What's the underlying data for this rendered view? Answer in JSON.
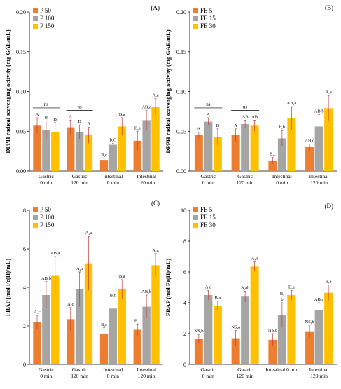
{
  "chart_data": [
    {
      "panel": "(A)",
      "type": "bar",
      "ylabel": "DPPH radical scavenging activity (mg GAE/mL)",
      "ylim": [
        0,
        0.2
      ],
      "yticks": [
        "0.00",
        "0.05",
        "0.10",
        "0.15",
        "0.20"
      ],
      "grid": false,
      "legend_position": "top-left",
      "categories": [
        [
          "Gastric",
          "0 min"
        ],
        [
          "Gastric",
          "120 min"
        ],
        [
          "Intestinal",
          "0 min"
        ],
        [
          "Intestinal",
          "120 min"
        ]
      ],
      "series": [
        {
          "name": "P 50",
          "color": "#ED7D31",
          "values": [
            0.057,
            0.055,
            0.014,
            0.038
          ],
          "errors": [
            0.01,
            0.009,
            0.002,
            0.012
          ],
          "labels": [
            "A",
            "A",
            "B,c",
            "B,a"
          ]
        },
        {
          "name": "P 100",
          "color": "#A5A5A5",
          "values": [
            0.052,
            0.049,
            0.033,
            0.064
          ],
          "errors": [
            0.011,
            0.009,
            0.002,
            0.012
          ],
          "labels": [
            "B",
            "B",
            "b,C",
            "AB,a"
          ]
        },
        {
          "name": "P 150",
          "color": "#FFC000",
          "values": [
            0.049,
            0.045,
            0.056,
            0.081
          ],
          "errors": [
            0.012,
            0.01,
            0.011,
            0.01
          ],
          "labels": [
            "B",
            "B",
            "B,a",
            "A,a"
          ]
        }
      ],
      "annotations": [
        {
          "text": "ns",
          "category": 0
        },
        {
          "text": "ns",
          "category": 1
        }
      ]
    },
    {
      "panel": "(B)",
      "type": "bar",
      "ylabel": "DPPH radical scavenging activity (mg GAE/mL)",
      "ylim": [
        0,
        0.2
      ],
      "yticks": [
        "0.00",
        "0.05",
        "0.10",
        "0.15",
        "0.20"
      ],
      "grid": false,
      "legend_position": "top-left",
      "categories": [
        [
          "Gastric",
          "0 min"
        ],
        [
          "Gastric",
          "120 min"
        ],
        [
          "Intestinal",
          "0 min"
        ],
        [
          "Intestinal",
          "120 min"
        ]
      ],
      "series": [
        {
          "name": "FE 5",
          "color": "#ED7D31",
          "values": [
            0.045,
            0.045,
            0.013,
            0.03
          ],
          "errors": [
            0.004,
            0.008,
            0.004,
            0.004
          ],
          "labels": [
            "A",
            "A",
            "B,c",
            "AB,c"
          ]
        },
        {
          "name": "FE 15",
          "color": "#A5A5A5",
          "values": [
            0.062,
            0.059,
            0.041,
            0.056
          ],
          "errors": [
            0.005,
            0.005,
            0.01,
            0.015
          ],
          "labels": [
            "A",
            "AB",
            "b,b",
            "AB,b"
          ]
        },
        {
          "name": "FE 30",
          "color": "#FFC000",
          "values": [
            0.043,
            0.057,
            0.066,
            0.079
          ],
          "errors": [
            0.01,
            0.007,
            0.015,
            0.016
          ],
          "labels": [
            "B",
            "AB",
            "AB,a",
            "A,a"
          ]
        }
      ],
      "annotations": [
        {
          "text": "ns",
          "category": 0
        },
        {
          "text": "ns",
          "category": 1
        }
      ]
    },
    {
      "panel": "(C)",
      "type": "bar",
      "ylabel": "FRAP (mol Fe(II)/mL)",
      "ylim": [
        0,
        8
      ],
      "yticks": [
        "0",
        "2",
        "4",
        "6",
        "8"
      ],
      "grid": false,
      "legend_position": "top-left",
      "categories": [
        [
          "Gastric",
          "0 min"
        ],
        [
          "Gastric",
          "120 min"
        ],
        [
          "Intestinal",
          "0 min"
        ],
        [
          "Intestinal",
          "120 min"
        ]
      ],
      "series": [
        {
          "name": "P 50",
          "color": "#ED7D31",
          "values": [
            2.2,
            2.35,
            1.6,
            1.8
          ],
          "errors": [
            0.35,
            0.6,
            0.3,
            0.3
          ],
          "labels": [
            "A,c",
            "A,c",
            "B,c",
            "B,c"
          ]
        },
        {
          "name": "P 100",
          "color": "#A5A5A5",
          "values": [
            3.6,
            3.9,
            2.9,
            3.0
          ],
          "errors": [
            0.7,
            0.9,
            0.5,
            0.6
          ],
          "labels": [
            "AB,b",
            "A,b",
            "B,b",
            "AB,b"
          ]
        },
        {
          "name": "P 150",
          "color": "#FFC000",
          "values": [
            4.6,
            5.25,
            3.9,
            5.15
          ],
          "errors": [
            1.0,
            1.4,
            0.5,
            0.6
          ],
          "labels": [
            "AB,a",
            "A,a",
            "B,a",
            "A,a"
          ]
        }
      ]
    },
    {
      "panel": "(D)",
      "type": "bar",
      "ylabel": "FRAP (mol Fe(II)/mL)",
      "ylim": [
        0,
        10
      ],
      "yticks": [
        "0",
        "2",
        "4",
        "6",
        "8",
        "10"
      ],
      "grid": false,
      "legend_position": "top-left",
      "categories": [
        [
          "Gastric",
          "0 min"
        ],
        [
          "Gastric",
          "120 min"
        ],
        [
          "Intestinal 0 min",
          ""
        ],
        [
          "Intestinal",
          "120 min"
        ]
      ],
      "series": [
        {
          "name": "FE 5",
          "color": "#ED7D31",
          "values": [
            1.65,
            1.7,
            1.6,
            2.15
          ],
          "errors": [
            0.3,
            0.5,
            0.4,
            0.4
          ],
          "labels": [
            "NS,b",
            "NS,a",
            "NS,c",
            "NS,b"
          ]
        },
        {
          "name": "FE 15",
          "color": "#A5A5A5",
          "values": [
            4.5,
            4.4,
            3.2,
            3.5
          ],
          "errors": [
            0.3,
            0.35,
            0.8,
            0.5
          ],
          "labels": [
            "A,a",
            "A,ab",
            "B,\nb",
            "AB,a"
          ]
        },
        {
          "name": "FE 30",
          "color": "#FFC000",
          "values": [
            3.8,
            6.35,
            4.5,
            4.65
          ],
          "errors": [
            0.3,
            0.3,
            0.3,
            0.5
          ],
          "labels": [
            "B,a",
            "A,b",
            "B,a",
            "B,a"
          ]
        }
      ]
    }
  ]
}
